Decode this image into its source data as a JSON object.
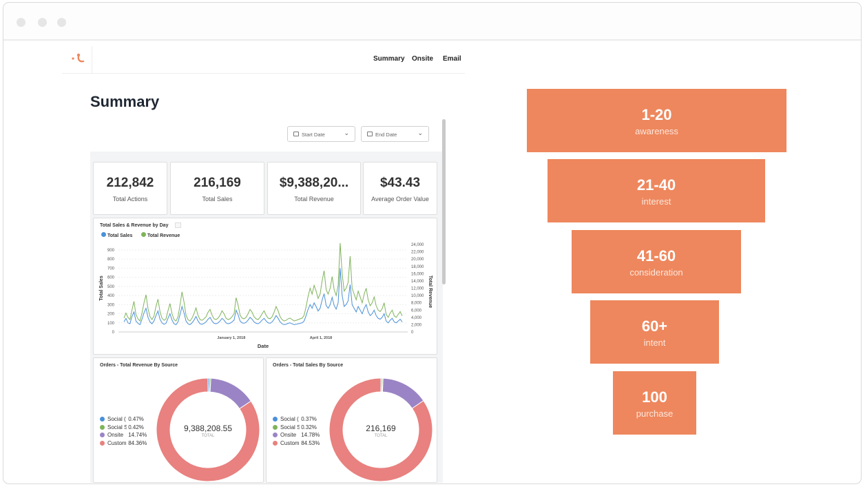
{
  "window": {
    "controls": [
      "close",
      "minimize",
      "maximize"
    ]
  },
  "nav": {
    "links": [
      "Summary",
      "Onsite",
      "Email"
    ]
  },
  "page": {
    "title": "Summary"
  },
  "filters": {
    "start_date": "Start Date",
    "end_date": "End Date"
  },
  "kpis": [
    {
      "value": "212,842",
      "label": "Total Actions"
    },
    {
      "value": "216,169",
      "label": "Total Sales"
    },
    {
      "value": "$9,388,20...",
      "label": "Total Revenue"
    },
    {
      "value": "$43.43",
      "label": "Average Order Value"
    }
  ],
  "colors": {
    "accent": "#ee875d",
    "sales": "#4a90d9",
    "revenue": "#7fb35a",
    "onsite": "#9b84c5",
    "custom": "#e8817f"
  },
  "line_chart": {
    "title": "Total Sales & Revenue by Day",
    "legend": [
      "Total Sales",
      "Total Revenue"
    ],
    "xlabel": "Date",
    "ylabel_left": "Total Sales",
    "ylabel_right": "Total Revenue",
    "left_ticks": [
      "0",
      "100",
      "200",
      "300",
      "400",
      "500",
      "600",
      "700",
      "800",
      "900"
    ],
    "right_ticks": [
      "0",
      "2,000",
      "4,000",
      "6,000",
      "8,000",
      "10,000",
      "12,000",
      "14,000",
      "16,000",
      "18,000",
      "20,000",
      "22,000",
      "24,000"
    ],
    "x_ticks": [
      "January 1, 2018",
      "April 1, 2018"
    ]
  },
  "chart_data": [
    {
      "type": "line",
      "title": "Total Sales & Revenue by Day",
      "xlabel": "Date",
      "ylabel": "Total Sales",
      "ylim": [
        0,
        960
      ],
      "y2label": "Total Revenue",
      "y2lim": [
        0,
        24000
      ],
      "x_ticks": [
        "January 1, 2018",
        "April 1, 2018"
      ],
      "series": [
        {
          "name": "Total Sales",
          "axis": "left",
          "values": [
            110,
            150,
            100,
            90,
            170,
            220,
            120,
            95,
            80,
            140,
            210,
            260,
            160,
            110,
            90,
            120,
            180,
            230,
            140,
            100,
            85,
            95,
            150,
            200,
            130,
            90,
            80,
            110,
            190,
            280,
            210,
            120,
            90,
            80,
            100,
            130,
            170,
            120,
            90,
            85,
            95,
            110,
            140,
            160,
            120,
            95,
            90,
            100,
            120,
            150,
            130,
            100,
            90,
            95,
            110,
            130,
            240,
            190,
            120,
            100,
            95,
            105,
            130,
            160,
            140,
            110,
            95,
            90,
            105,
            130,
            150,
            120,
            100,
            95,
            110,
            140,
            180,
            150,
            110,
            90,
            80,
            85,
            95,
            100,
            90,
            80,
            85,
            90,
            95,
            100,
            120,
            180,
            250,
            300,
            260,
            320,
            280,
            230,
            260,
            350,
            420,
            290,
            260,
            300,
            380,
            290,
            250,
            320,
            700,
            400,
            280,
            300,
            340,
            520,
            300,
            260,
            220,
            280,
            240,
            200,
            260,
            300,
            220,
            180,
            200,
            240,
            180,
            150,
            140,
            160,
            200,
            120,
            100,
            130,
            150,
            110,
            100,
            120,
            140,
            110
          ]
        },
        {
          "name": "Total Revenue",
          "axis": "right",
          "values": [
            3800,
            5200,
            4000,
            3400,
            6000,
            8400,
            4800,
            3600,
            3000,
            5200,
            8000,
            10200,
            6400,
            4200,
            3400,
            4400,
            7000,
            9000,
            5600,
            3800,
            3200,
            3600,
            5800,
            7800,
            5000,
            3400,
            3000,
            4200,
            7400,
            11000,
            8200,
            4600,
            3400,
            3000,
            3800,
            5000,
            6600,
            4600,
            3400,
            3200,
            3600,
            4200,
            5400,
            6200,
            4600,
            3600,
            3400,
            3800,
            4600,
            5800,
            5000,
            3800,
            3400,
            3600,
            4200,
            5000,
            9400,
            7400,
            4600,
            3800,
            3600,
            4000,
            5000,
            6200,
            5400,
            4200,
            3600,
            3400,
            4000,
            5000,
            5800,
            4600,
            3800,
            3600,
            4200,
            5400,
            7000,
            5800,
            4200,
            3400,
            3000,
            3200,
            3600,
            3800,
            3400,
            3000,
            3200,
            3400,
            3600,
            3800,
            4600,
            7000,
            9800,
            12000,
            10400,
            12800,
            11200,
            9200,
            10400,
            14000,
            16800,
            11600,
            10400,
            12000,
            15200,
            11600,
            10000,
            12800,
            24400,
            16000,
            11200,
            12000,
            13600,
            20800,
            12000,
            10400,
            8800,
            11200,
            9600,
            8000,
            10400,
            12000,
            8800,
            7200,
            8000,
            9600,
            7200,
            6000,
            5600,
            6400,
            8000,
            4800,
            4000,
            5200,
            6000,
            4400,
            4000,
            4800,
            5600,
            4400
          ]
        }
      ]
    },
    {
      "type": "pie",
      "title": "Orders - Total Revenue By Source",
      "center_value": "9,388,208.55",
      "center_label": "TOTAL",
      "slices": [
        {
          "label": "Social (",
          "value": 0.47,
          "display": "0.47%",
          "color": "#4a90d9"
        },
        {
          "label": "Social S",
          "value": 0.42,
          "display": "0.42%",
          "color": "#7fb35a"
        },
        {
          "label": "Onsite",
          "value": 14.74,
          "display": "14.74%",
          "color": "#9b84c5"
        },
        {
          "label": "Custom",
          "value": 84.36,
          "display": "84.36%",
          "color": "#e8817f"
        }
      ]
    },
    {
      "type": "pie",
      "title": "Orders - Total Sales By Source",
      "center_value": "216,169",
      "center_label": "TOTAL",
      "slices": [
        {
          "label": "Social (",
          "value": 0.37,
          "display": "0.37%",
          "color": "#4a90d9"
        },
        {
          "label": "Social S",
          "value": 0.32,
          "display": "0.32%",
          "color": "#7fb35a"
        },
        {
          "label": "Onsite",
          "value": 14.78,
          "display": "14.78%",
          "color": "#9b84c5"
        },
        {
          "label": "Custom",
          "value": 84.53,
          "display": "84.53%",
          "color": "#e8817f"
        }
      ]
    }
  ],
  "funnel": [
    {
      "range": "1-20",
      "stage": "awareness"
    },
    {
      "range": "21-40",
      "stage": "interest"
    },
    {
      "range": "41-60",
      "stage": "consideration"
    },
    {
      "range": "60+",
      "stage": "intent"
    },
    {
      "range": "100",
      "stage": "purchase"
    }
  ]
}
